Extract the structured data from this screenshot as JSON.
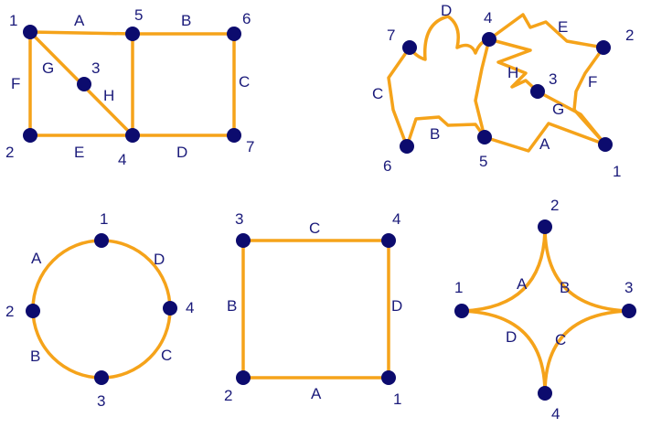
{
  "colors": {
    "edge": "#f5a31a",
    "node": "#0c0b6e",
    "text": "#1a1a7a",
    "background": "#ffffff"
  },
  "graphs": [
    {
      "id": "g1",
      "node_labels": [
        "1",
        "5",
        "6",
        "3",
        "2",
        "4",
        "7"
      ],
      "edge_labels": [
        "A",
        "B",
        "F",
        "G",
        "H",
        "C",
        "E",
        "D"
      ]
    },
    {
      "id": "g2",
      "node_labels": [
        "7",
        "4",
        "2",
        "3",
        "6",
        "5",
        "1"
      ],
      "edge_labels": [
        "D",
        "E",
        "C",
        "H",
        "F",
        "G",
        "B",
        "A"
      ]
    },
    {
      "id": "g3",
      "node_labels": [
        "1",
        "2",
        "4",
        "3"
      ],
      "edge_labels": [
        "A",
        "D",
        "B",
        "C"
      ]
    },
    {
      "id": "g4",
      "node_labels": [
        "3",
        "4",
        "2",
        "1"
      ],
      "edge_labels": [
        "C",
        "B",
        "D",
        "A"
      ]
    },
    {
      "id": "g5",
      "node_labels": [
        "2",
        "1",
        "3",
        "4"
      ],
      "edge_labels": [
        "A",
        "B",
        "D",
        "C"
      ]
    }
  ]
}
